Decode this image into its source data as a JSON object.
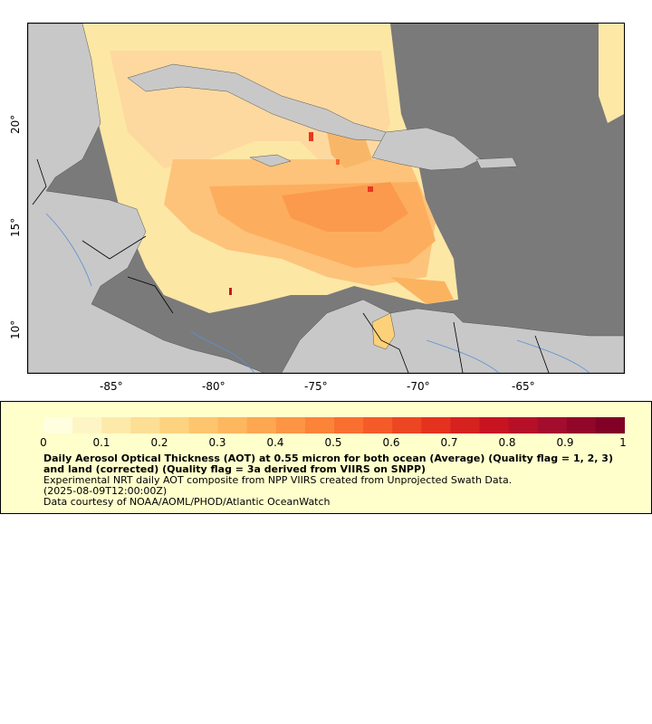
{
  "map": {
    "lon_ticks": [
      "-85°",
      "-80°",
      "-75°",
      "-70°",
      "-65°"
    ],
    "lat_ticks": [
      "20°",
      "15°",
      "10°"
    ],
    "colors": {
      "no_data": "#7a7a7a",
      "land": "#c8c8c8",
      "borders": "#000000",
      "rivers": "#5e8fd4"
    }
  },
  "legend": {
    "colorbar_labels": [
      "0",
      "0.1",
      "0.2",
      "0.3",
      "0.4",
      "0.5",
      "0.6",
      "0.7",
      "0.8",
      "0.9",
      "1"
    ],
    "title": "Daily Aerosol Optical Thickness (AOT) at 0.55 micron for both ocean (Average) (Quality flag = 1, 2, 3) and land (corrected) (Quality flag = 3a derived from VIIRS on SNPP)",
    "description": "Experimental NRT daily AOT composite from NPP VIIRS created from Unprojected Swath Data.",
    "timestamp": "(2025-08-09T12:00:00Z)",
    "credit": "Data courtesy of NOAA/AOML/PHOD/Atlantic OceanWatch",
    "colorbar_range": [
      0,
      1
    ],
    "colorbar_stops": [
      "#ffffe0",
      "#fde9a8",
      "#fdd07a",
      "#fdb25a",
      "#fc8f3e",
      "#f8642b",
      "#e8381e",
      "#cc1520",
      "#a50d2d",
      "#800026"
    ]
  }
}
